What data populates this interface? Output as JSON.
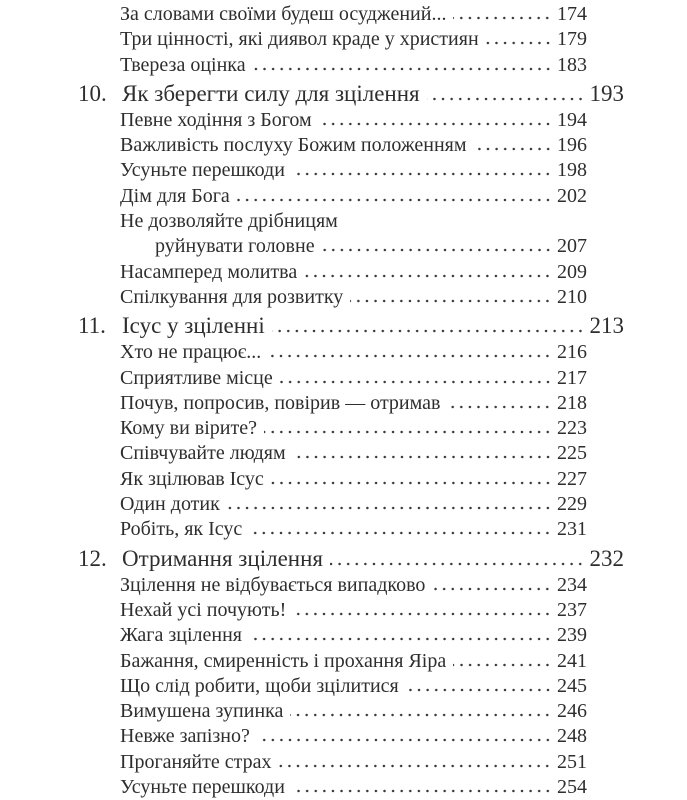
{
  "page": {
    "background_color": "#ffffff",
    "text_color": "#2e2e2e",
    "language": "uk"
  },
  "toc": {
    "entries": [
      {
        "type": "sub",
        "title": "За словами своїми будеш осуджений...",
        "page": "174"
      },
      {
        "type": "sub",
        "title": "Три цінності, які диявол краде у християн",
        "page": "179"
      },
      {
        "type": "sub",
        "title": "Твереза оцінка",
        "page": "183"
      },
      {
        "type": "chapter",
        "number": "10.",
        "title": "Як зберегти силу для зцілення",
        "page": "193"
      },
      {
        "type": "sub",
        "title": "Певне ходіння з Богом",
        "page": "194"
      },
      {
        "type": "sub",
        "title": "Важливість послуху Божим положенням",
        "page": "196"
      },
      {
        "type": "sub",
        "title": "Усуньте перешкоди",
        "page": "198"
      },
      {
        "type": "sub",
        "title": "Дім для Бога",
        "page": "202"
      },
      {
        "type": "sub-wrap",
        "line1": "Не дозволяйте дрібницям",
        "line2": "руйнувати головне",
        "page": "207"
      },
      {
        "type": "sub",
        "title": "Насамперед молитва",
        "page": "209"
      },
      {
        "type": "sub",
        "title": "Спілкування для розвитку",
        "page": "210"
      },
      {
        "type": "chapter",
        "number": "11.",
        "title": "Ісус у зціленні",
        "page": "213"
      },
      {
        "type": "sub",
        "title": "Хто не працює...",
        "page": "216"
      },
      {
        "type": "sub",
        "title": "Сприятливе місце",
        "page": "217"
      },
      {
        "type": "sub",
        "title": "Почув, попросив, повірив — отримав",
        "page": "218"
      },
      {
        "type": "sub",
        "title": "Кому ви вірите?",
        "page": "223"
      },
      {
        "type": "sub",
        "title": "Співчувайте людям",
        "page": "225"
      },
      {
        "type": "sub",
        "title": "Як зцілював Ісус",
        "page": "227"
      },
      {
        "type": "sub",
        "title": "Один дотик",
        "page": "229"
      },
      {
        "type": "sub",
        "title": "Робіть, як Ісус",
        "page": "231"
      },
      {
        "type": "chapter",
        "number": "12.",
        "title": "Отримання зцілення",
        "page": "232"
      },
      {
        "type": "sub",
        "title": "Зцілення не відбувається випадково",
        "page": "234"
      },
      {
        "type": "sub",
        "title": "Нехай усі почують!",
        "page": "237"
      },
      {
        "type": "sub",
        "title": "Жага зцілення",
        "page": "239"
      },
      {
        "type": "sub",
        "title": "Бажання, смиренність і прохання Яіра",
        "page": "241"
      },
      {
        "type": "sub",
        "title": "Що слід робити, щоби зцілитися",
        "page": "245"
      },
      {
        "type": "sub",
        "title": "Вимушена зупинка",
        "page": "246"
      },
      {
        "type": "sub",
        "title": "Невже запізно?",
        "page": "248"
      },
      {
        "type": "sub",
        "title": "Проганяйте страх",
        "page": "251"
      },
      {
        "type": "sub",
        "title": "Усуньте перешкоди",
        "page": "254"
      }
    ]
  }
}
